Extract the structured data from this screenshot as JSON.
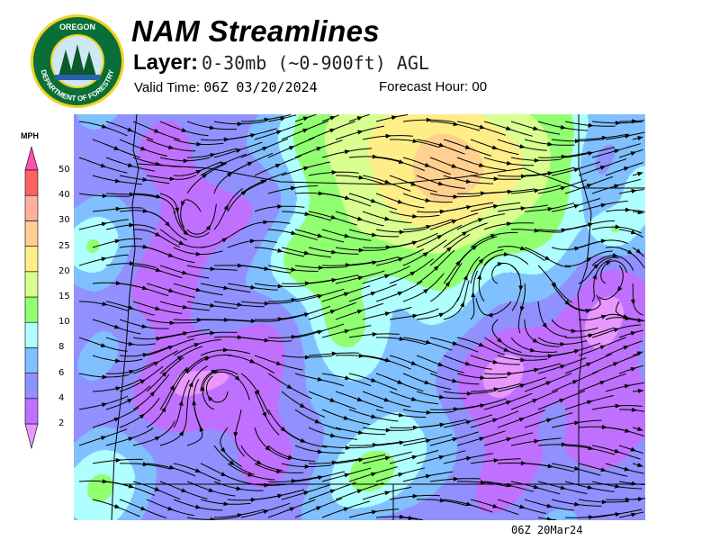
{
  "logo": {
    "top_text": "OREGON",
    "bottom_text": "DEPARTMENT OF FORESTRY",
    "ring_color": "#f2d21b",
    "fill_color": "#0a7a3a"
  },
  "header": {
    "title": "NAM Streamlines",
    "layer_label": "Layer:",
    "layer_value": "0-30mb (~0-900ft) AGL",
    "valid_label": "Valid Time:",
    "valid_value": "06Z 03/20/2024",
    "forecast_label": "Forecast Hour:",
    "forecast_value": "00"
  },
  "legend": {
    "units": "MPH",
    "below_color": "#e898ff",
    "above_color": "#ff50b0",
    "bins": [
      {
        "label": "2",
        "color": "#c070ff"
      },
      {
        "label": "4",
        "color": "#9090ff"
      },
      {
        "label": "6",
        "color": "#80c0ff"
      },
      {
        "label": "8",
        "color": "#b0ffff"
      },
      {
        "label": "10",
        "color": "#90ff70"
      },
      {
        "label": "15",
        "color": "#d8ff90"
      },
      {
        "label": "20",
        "color": "#ffee88"
      },
      {
        "label": "25",
        "color": "#ffd090"
      },
      {
        "label": "30",
        "color": "#ffb0a0"
      },
      {
        "label": "40",
        "color": "#ff6060"
      },
      {
        "label": "50",
        "color": ""
      }
    ]
  },
  "footer": {
    "stamp": "06Z 20Mar24"
  }
}
